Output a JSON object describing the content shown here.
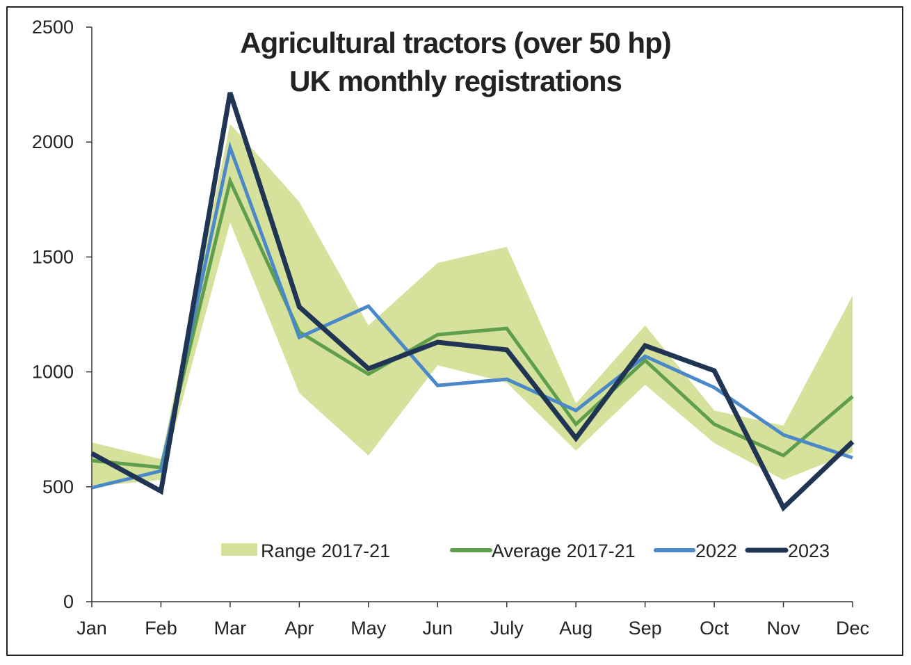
{
  "chart_data": {
    "type": "line",
    "title": [
      "Agricultural tractors (over 50 hp)",
      "UK monthly registrations"
    ],
    "categories": [
      "Jan",
      "Feb",
      "Mar",
      "Apr",
      "May",
      "Jun",
      "July",
      "Aug",
      "Sep",
      "Oct",
      "Nov",
      "Dec"
    ],
    "ylim": [
      0,
      2500
    ],
    "yticks": [
      0,
      500,
      1000,
      1500,
      2000,
      2500
    ],
    "grid": false,
    "legend_placement": "bottom",
    "range": {
      "name": "Range 2017-21",
      "color": "#d6e19c",
      "upper": [
        693,
        620,
        2079,
        1740,
        1202,
        1474,
        1544,
        863,
        1202,
        832,
        766,
        1332
      ],
      "lower": [
        500,
        530,
        1650,
        908,
        636,
        1029,
        953,
        657,
        944,
        690,
        530,
        650
      ]
    },
    "series": [
      {
        "name": "Average 2017-21",
        "color": "#5f9e4c",
        "values": [
          614,
          584,
          1831,
          1174,
          990,
          1162,
          1189,
          772,
          1050,
          772,
          636,
          893
        ]
      },
      {
        "name": "2022",
        "color": "#4a88c8",
        "values": [
          496,
          569,
          1976,
          1150,
          1286,
          941,
          968,
          832,
          1068,
          932,
          726,
          626
        ]
      },
      {
        "name": "2023",
        "color": "#1f3553",
        "values": [
          645,
          481,
          2215,
          1283,
          1014,
          1129,
          1096,
          711,
          1114,
          1005,
          409,
          696
        ]
      }
    ]
  }
}
